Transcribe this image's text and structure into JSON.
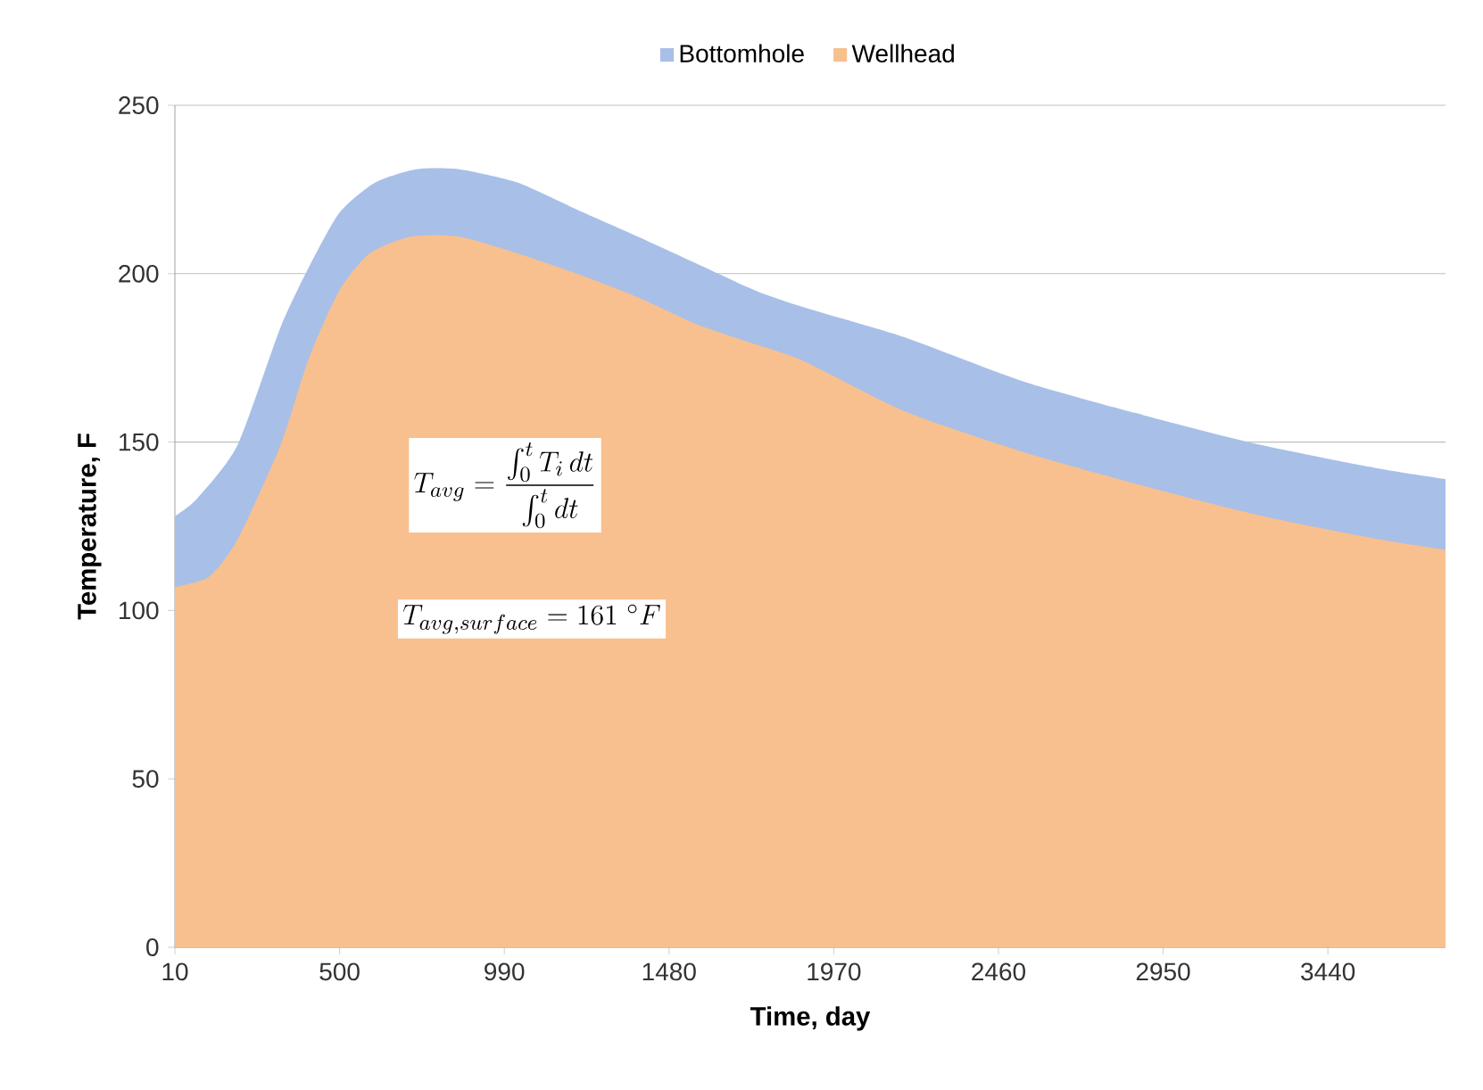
{
  "chart_data": {
    "type": "area",
    "xlabel": "Time, day",
    "ylabel": "Temperature, F",
    "xlim": [
      10,
      3790
    ],
    "ylim": [
      0,
      250
    ],
    "xticks": [
      10,
      500,
      990,
      1480,
      1970,
      2460,
      2950,
      3440
    ],
    "yticks": [
      0,
      50,
      100,
      150,
      200,
      250
    ],
    "grid": "y",
    "legend": "top",
    "series": [
      {
        "name": "Bottomhole",
        "color": "#a8bfe8",
        "x": [
          10,
          74,
          196,
          324,
          409,
          499,
          605,
          728,
          855,
          1030,
          1206,
          1387,
          1562,
          1737,
          1881,
          2184,
          2535,
          2891,
          3247,
          3598,
          3790
        ],
        "values": [
          128,
          133,
          149,
          184,
          202,
          218,
          227,
          231,
          231,
          227,
          219,
          211,
          203,
          195,
          190,
          181,
          168,
          158,
          149,
          142,
          139
        ]
      },
      {
        "name": "Wellhead",
        "color": "#f8c08f",
        "x": [
          10,
          111,
          196,
          324,
          409,
          499,
          589,
          712,
          855,
          1030,
          1206,
          1387,
          1562,
          1737,
          1881,
          2184,
          2535,
          2891,
          3247,
          3598,
          3790
        ],
        "values": [
          107,
          110,
          121,
          149,
          175,
          195,
          206,
          211,
          211,
          206,
          200,
          193,
          185,
          179,
          174,
          159,
          147,
          137,
          128,
          121,
          118
        ]
      }
    ],
    "annotations": [
      "T_{avg}=\\frac{\\int_0^t T_i\\,dt}{\\int_0^t dt}",
      "T_{avg,surface}=161\\ {}^{\\circ}F"
    ]
  }
}
